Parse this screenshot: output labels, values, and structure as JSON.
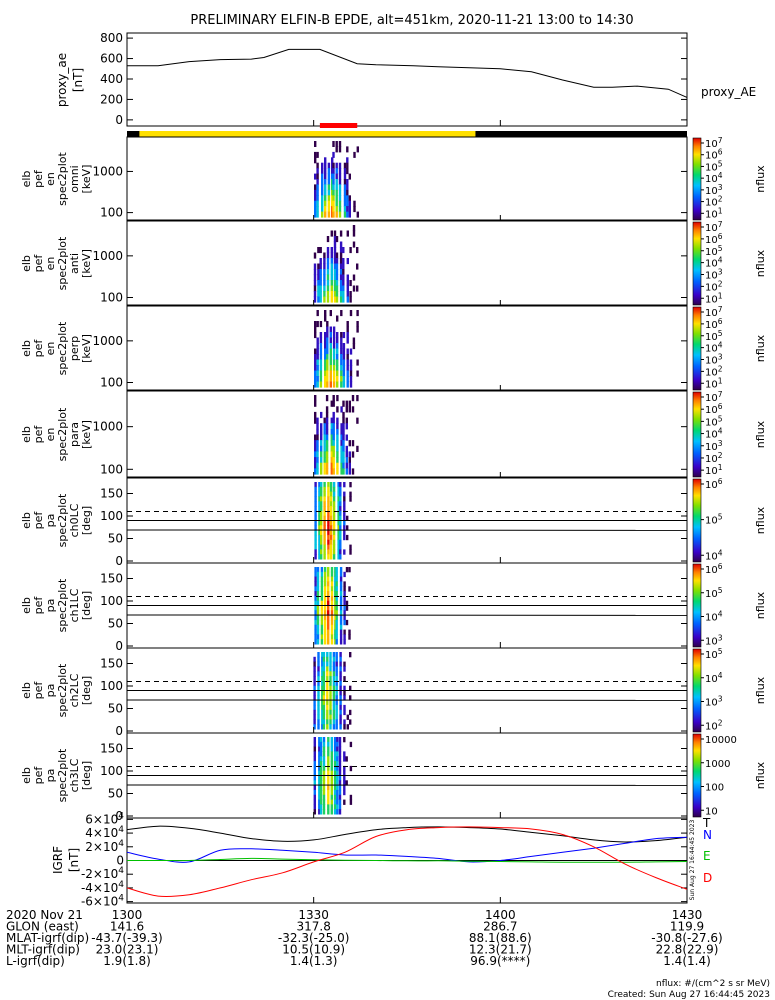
{
  "title": "PRELIMINARY ELFIN-B EPDE, alt=451km, 2020-11-21 13:00 to 14:30",
  "colors": {
    "bar_black": "#000000",
    "bar_yellow": "#ffe000",
    "bar_red": "#ff0000",
    "igrf_T": "#000000",
    "igrf_N": "#0000ff",
    "igrf_E": "#00c000",
    "igrf_D": "#ff0000"
  },
  "chart_data": [
    {
      "type": "line",
      "id": "proxy_ae",
      "ylabel": [
        "proxy_ae",
        "[nT]"
      ],
      "yticks": [
        "800",
        "600",
        "400",
        "200",
        "0"
      ],
      "ylim": [
        -60,
        850
      ],
      "legend": "proxy_AE",
      "x_minutes": [
        0,
        5,
        10,
        15,
        20,
        22,
        26,
        31,
        37,
        40,
        46,
        50,
        60,
        65,
        70,
        75,
        78,
        82,
        87,
        90
      ],
      "values": [
        530,
        530,
        570,
        590,
        595,
        610,
        690,
        690,
        550,
        540,
        530,
        520,
        500,
        470,
        390,
        320,
        320,
        330,
        300,
        220
      ]
    },
    {
      "type": "heatmap",
      "id": "orbit_bar",
      "segments": [
        {
          "color": "black",
          "from": 0,
          "to": 2
        },
        {
          "color": "yellow",
          "from": 2,
          "to": 56
        },
        {
          "color": "black",
          "from": 56,
          "to": 90
        }
      ],
      "science_zone": {
        "color": "red",
        "from": 31,
        "to": 37
      }
    },
    {
      "type": "heatmap",
      "id": "spec_omni",
      "ylabel": [
        "elb",
        "pef",
        "en",
        "spec2plot",
        "omni",
        "[keV]"
      ],
      "yticks": [
        "1000",
        "100"
      ],
      "colorbar_ticks": [
        "10^7",
        "10^6",
        "10^5",
        "10^4",
        "10^3",
        "10^2",
        "10^1"
      ],
      "colorbar_label": "nflux"
    },
    {
      "type": "heatmap",
      "id": "spec_anti",
      "ylabel": [
        "elb",
        "pef",
        "en",
        "spec2plot",
        "anti",
        "[keV]"
      ],
      "yticks": [
        "1000",
        "100"
      ],
      "colorbar_ticks": [
        "10^7",
        "10^6",
        "10^5",
        "10^4",
        "10^3",
        "10^2",
        "10^1"
      ],
      "colorbar_label": "nflux"
    },
    {
      "type": "heatmap",
      "id": "spec_perp",
      "ylabel": [
        "elb",
        "pef",
        "en",
        "spec2plot",
        "perp",
        "[keV]"
      ],
      "yticks": [
        "1000",
        "100"
      ],
      "colorbar_ticks": [
        "10^7",
        "10^6",
        "10^5",
        "10^4",
        "10^3",
        "10^2",
        "10^1"
      ],
      "colorbar_label": "nflux"
    },
    {
      "type": "heatmap",
      "id": "spec_para",
      "ylabel": [
        "elb",
        "pef",
        "en",
        "spec2plot",
        "para",
        "[keV]"
      ],
      "yticks": [
        "1000",
        "100"
      ],
      "colorbar_ticks": [
        "10^7",
        "10^6",
        "10^5",
        "10^4",
        "10^3",
        "10^2",
        "10^1"
      ],
      "colorbar_label": "nflux"
    },
    {
      "type": "heatmap",
      "id": "pa_ch0",
      "ylabel": [
        "elb",
        "pef",
        "pa",
        "spec2plot",
        "ch0LC",
        "[deg]"
      ],
      "yticks": [
        "150",
        "100",
        "50",
        "0"
      ],
      "colorbar_ticks": [
        "10^6",
        "10^5",
        "10^4"
      ],
      "colorbar_label": "nflux"
    },
    {
      "type": "heatmap",
      "id": "pa_ch1",
      "ylabel": [
        "elb",
        "pef",
        "pa",
        "spec2plot",
        "ch1LC",
        "[deg]"
      ],
      "yticks": [
        "150",
        "100",
        "50",
        "0"
      ],
      "colorbar_ticks": [
        "10^6",
        "10^5",
        "10^4",
        "10^3"
      ],
      "colorbar_label": "nflux"
    },
    {
      "type": "heatmap",
      "id": "pa_ch2",
      "ylabel": [
        "elb",
        "pef",
        "pa",
        "spec2plot",
        "ch2LC",
        "[deg]"
      ],
      "yticks": [
        "150",
        "100",
        "50",
        "0"
      ],
      "colorbar_ticks": [
        "10^5",
        "10^4",
        "10^3",
        "10^2"
      ],
      "colorbar_label": "nflux"
    },
    {
      "type": "heatmap",
      "id": "pa_ch3",
      "ylabel": [
        "elb",
        "pef",
        "pa",
        "spec2plot",
        "ch3LC",
        "[deg]"
      ],
      "yticks": [
        "150",
        "100",
        "50",
        "0"
      ],
      "colorbar_ticks": [
        "10000",
        "1000",
        "100",
        "10"
      ],
      "colorbar_label": "nflux"
    },
    {
      "type": "line",
      "id": "igrf",
      "ylabel": [
        "IGRF",
        "[nT]"
      ],
      "yticks": [
        "6x10^4",
        "4x10^4",
        "2x10^4",
        "0",
        "-2x10^4",
        "-4x10^4",
        "-6x10^4"
      ],
      "ylim": [
        -62000,
        62000
      ],
      "legend": [
        "T",
        "N",
        "E",
        "D"
      ],
      "side_text": "Sun Aug 27 16:44:45 2023",
      "x_minutes": [
        0,
        5,
        10,
        15,
        20,
        25,
        30,
        35,
        40,
        45,
        50,
        55,
        60,
        65,
        70,
        75,
        80,
        85,
        90
      ],
      "series": [
        {
          "name": "T",
          "values": [
            45000,
            50000,
            47000,
            40000,
            32000,
            28000,
            30000,
            38000,
            45000,
            48000,
            49000,
            48000,
            46000,
            41000,
            36000,
            30000,
            27000,
            29000,
            34000
          ]
        },
        {
          "name": "N",
          "values": [
            12000,
            2000,
            -2000,
            15000,
            17000,
            15000,
            12000,
            8000,
            8000,
            6000,
            3000,
            -2000,
            0,
            6000,
            12000,
            18000,
            25000,
            32000,
            34000
          ]
        },
        {
          "name": "E",
          "values": [
            0,
            0,
            0,
            1500,
            3000,
            2000,
            1000,
            500,
            0,
            -500,
            -500,
            -1000,
            -1500,
            -2000,
            -2500,
            -2500,
            -2500,
            -2000,
            -1500
          ]
        },
        {
          "name": "D",
          "values": [
            -40000,
            -52000,
            -50000,
            -40000,
            -28000,
            -18000,
            -2000,
            12000,
            35000,
            45000,
            48000,
            49000,
            48000,
            46000,
            38000,
            20000,
            -5000,
            -25000,
            -42000
          ]
        }
      ]
    }
  ],
  "xaxis": {
    "ticks": [
      "1300",
      "1330",
      "1400",
      "1430"
    ],
    "rows": [
      {
        "label": "2020 Nov 21",
        "values": [
          "1300",
          "1330",
          "1400",
          "1430"
        ]
      },
      {
        "label": "GLON (east)",
        "values": [
          "141.6",
          "317.8",
          "286.7",
          "119.9"
        ]
      },
      {
        "label": "MLAT-igrf(dip)",
        "values": [
          "-43.7(-39.3)",
          "-32.3(-25.0)",
          "88.1(88.6)",
          "-30.8(-27.6)"
        ]
      },
      {
        "label": "MLT-igrf(dip)",
        "values": [
          "23.0(23.1)",
          "10.5(10.9)",
          "12.3(21.7)",
          "22.8(22.9)"
        ]
      },
      {
        "label": "L-igrf(dip)",
        "values": [
          "1.9(1.8)",
          "1.4(1.3)",
          "96.9(****)",
          "1.4(1.4)"
        ]
      }
    ]
  },
  "footer": {
    "units": "nflux: #/(cm^2 s sr MeV)",
    "created": "Created: Sun Aug 27 16:44:45 2023"
  }
}
